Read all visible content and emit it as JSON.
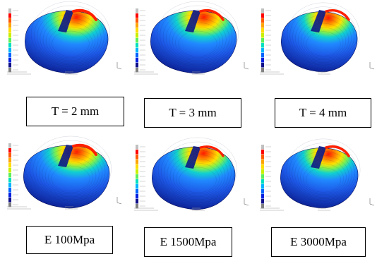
{
  "panels": [
    {
      "caption": "T = 2 mm"
    },
    {
      "caption": "T = 3 mm"
    },
    {
      "caption": "T = 4 mm"
    },
    {
      "caption": "E 100Mpa"
    },
    {
      "caption": "E 1500Mpa"
    },
    {
      "caption": "E 3000Mpa"
    }
  ],
  "colors": {
    "legend": [
      "#c0c0c0",
      "#ff0000",
      "#ff5a00",
      "#ffa500",
      "#ffdd00",
      "#c8f000",
      "#5ef05a",
      "#00e0c0",
      "#00b4ff",
      "#0064ff",
      "#0020e0",
      "#10108a",
      "#808080"
    ],
    "body_dark": "#0a1a8a",
    "body_mid": "#1d58e6"
  }
}
